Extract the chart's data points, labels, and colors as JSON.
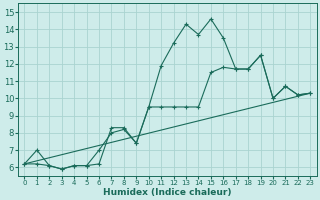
{
  "xlabel": "Humidex (Indice chaleur)",
  "bg_color": "#ceecea",
  "grid_color": "#aad4d0",
  "line_color": "#1a6b5a",
  "xlim": [
    -0.5,
    23.5
  ],
  "ylim": [
    5.5,
    15.5
  ],
  "xticks": [
    0,
    1,
    2,
    3,
    4,
    5,
    6,
    7,
    8,
    9,
    10,
    11,
    12,
    13,
    14,
    15,
    16,
    17,
    18,
    19,
    20,
    21,
    22,
    23
  ],
  "yticks": [
    6,
    7,
    8,
    9,
    10,
    11,
    12,
    13,
    14,
    15
  ],
  "series1_x": [
    0,
    1,
    2,
    3,
    4,
    5,
    6,
    7,
    8,
    9,
    10,
    11,
    12,
    13,
    14,
    15,
    16,
    17,
    18,
    19,
    20,
    21,
    22,
    23
  ],
  "series1_y": [
    6.2,
    7.0,
    6.1,
    5.9,
    6.1,
    6.1,
    6.2,
    8.3,
    8.3,
    7.4,
    9.5,
    11.9,
    13.2,
    14.3,
    13.7,
    14.6,
    13.5,
    11.7,
    11.7,
    12.5,
    10.0,
    10.7,
    10.2,
    10.3
  ],
  "series2_x": [
    0,
    1,
    2,
    3,
    4,
    5,
    6,
    7,
    8,
    9,
    10,
    11,
    12,
    13,
    14,
    15,
    16,
    17,
    18,
    19,
    20,
    21,
    22,
    23
  ],
  "series2_y": [
    6.2,
    6.2,
    6.1,
    5.9,
    6.1,
    6.1,
    7.0,
    8.0,
    8.2,
    7.4,
    9.5,
    9.5,
    9.5,
    9.5,
    9.5,
    11.5,
    11.8,
    11.7,
    11.7,
    12.5,
    10.0,
    10.7,
    10.2,
    10.3
  ],
  "series3_x": [
    0,
    23
  ],
  "series3_y": [
    6.2,
    10.3
  ]
}
